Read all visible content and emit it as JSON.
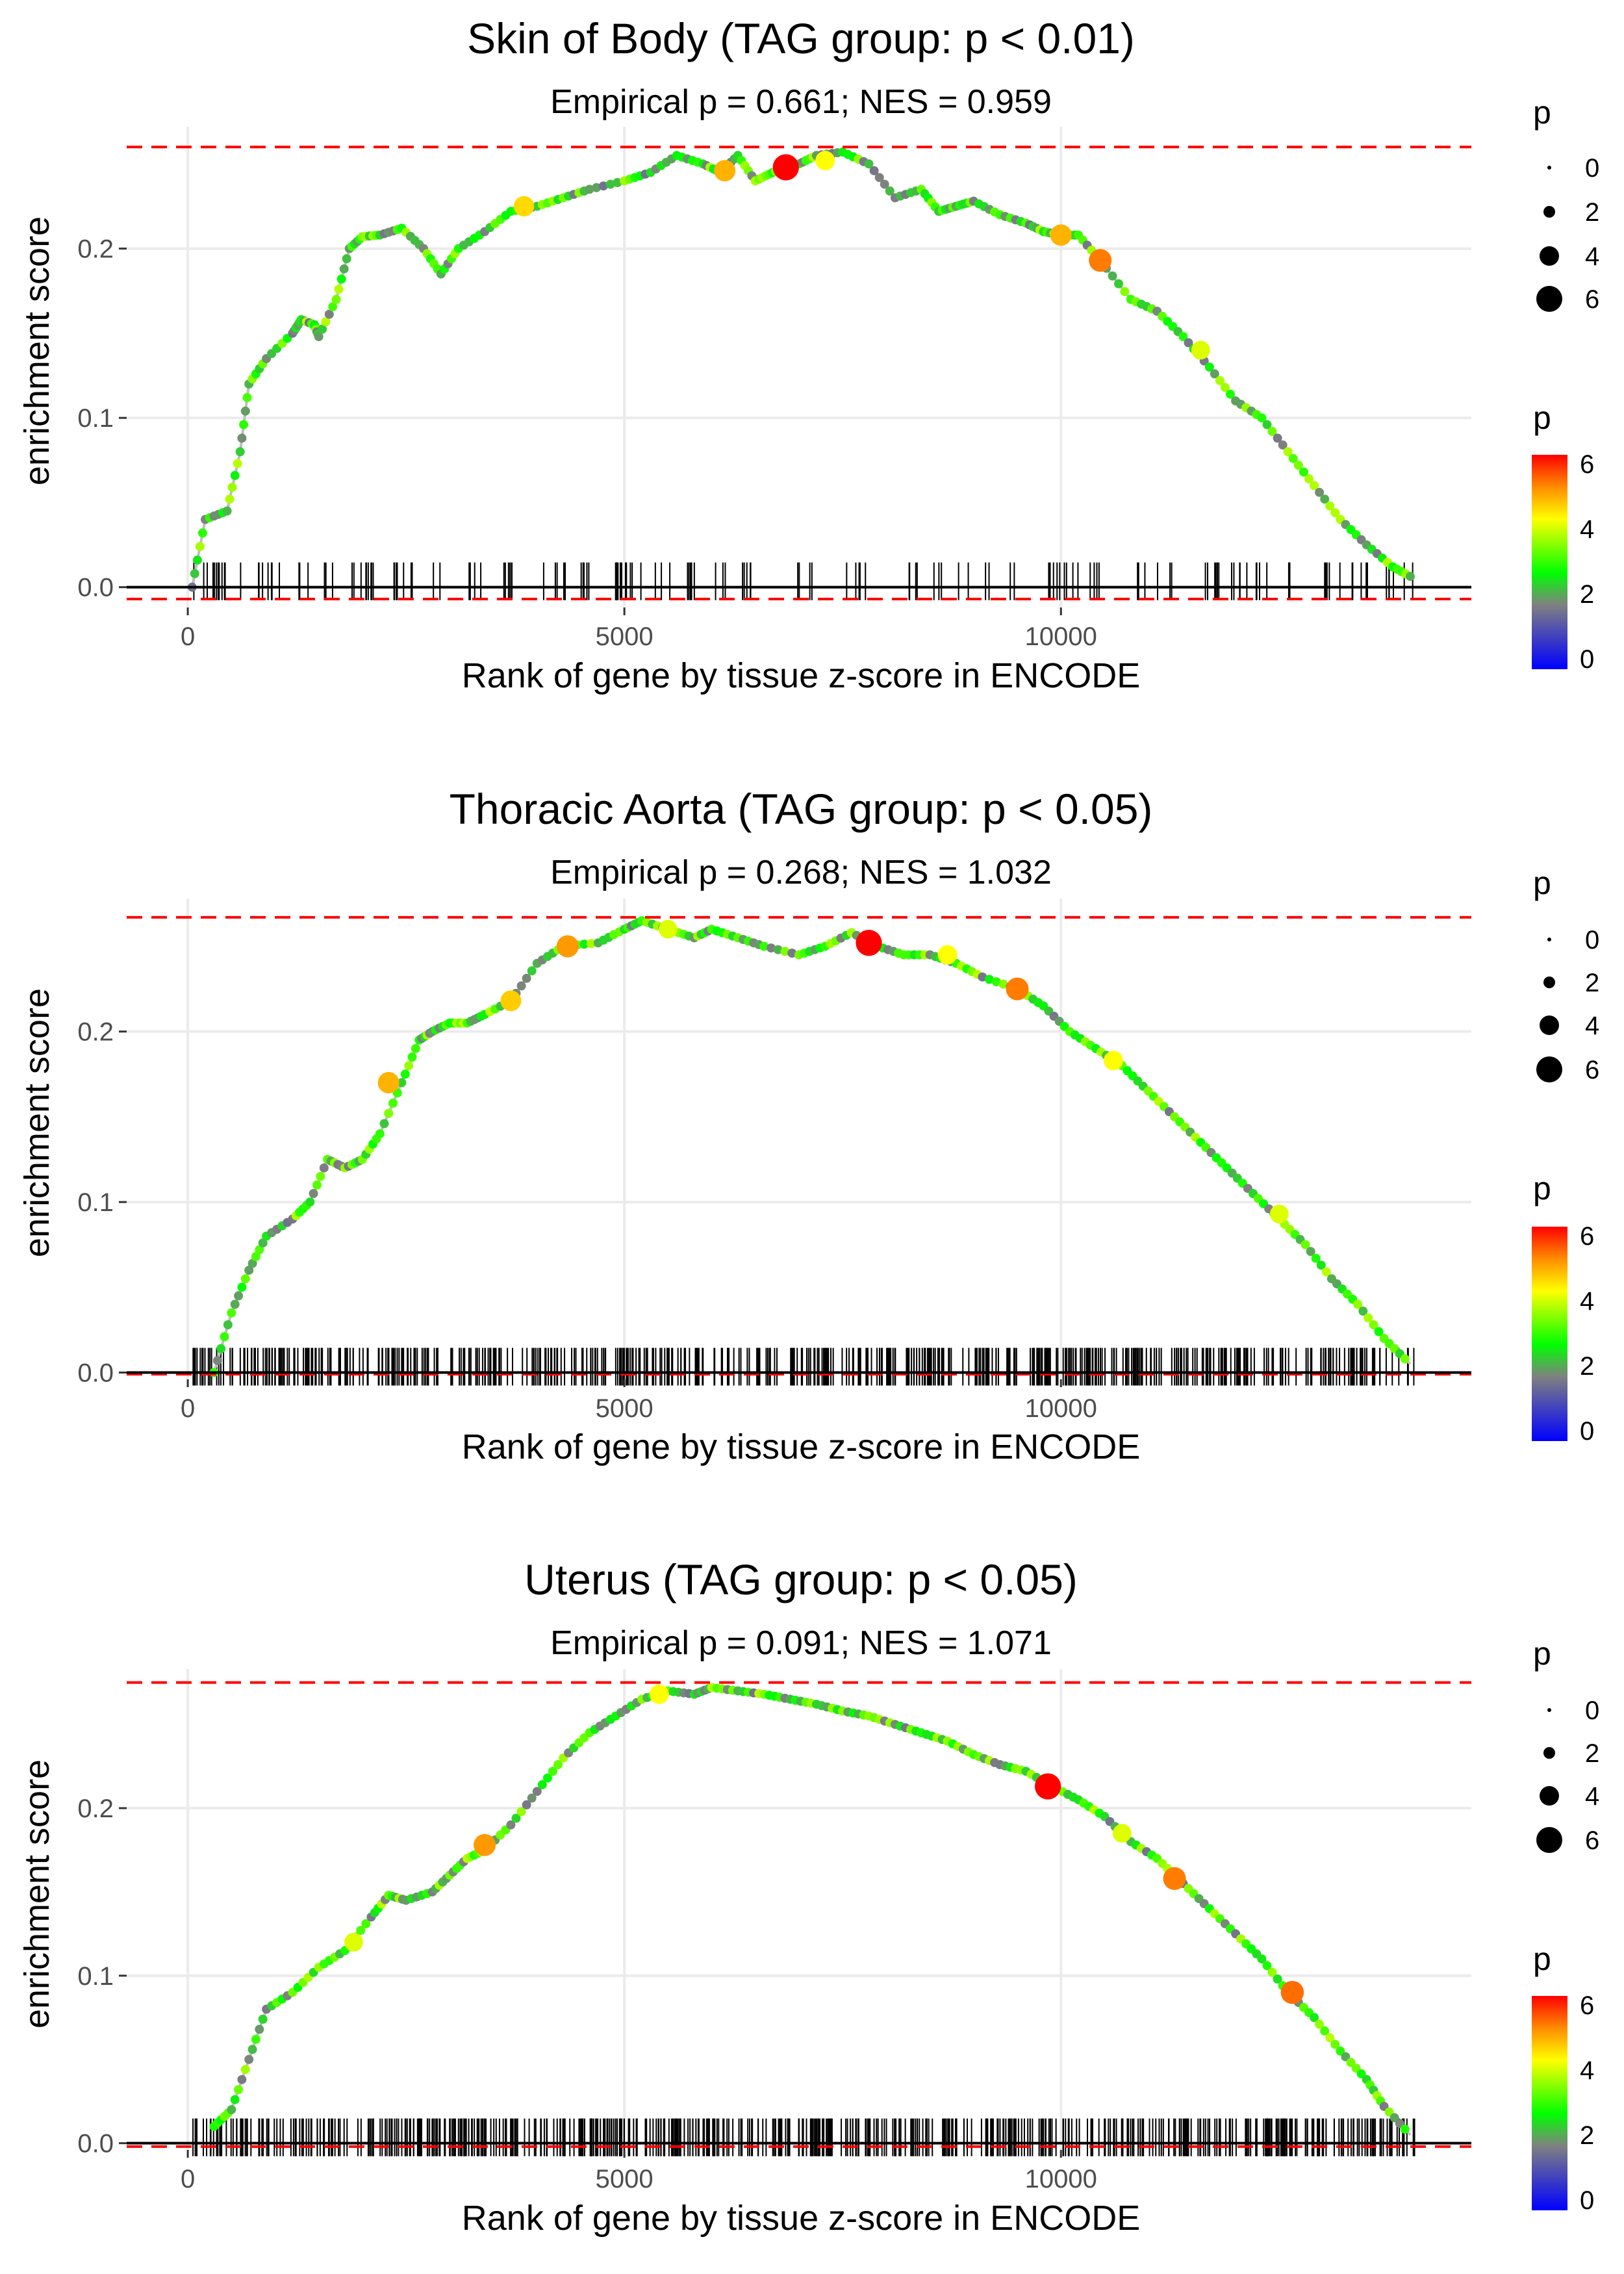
{
  "chart_data": [
    {
      "type": "line",
      "title": "Skin of Body (TAG group: p < 0.01)",
      "subtitle": "Empirical p = 0.661; NES = 0.959",
      "xlabel": "Rank of gene by tissue z-score in ENCODE",
      "ylabel": "enrichment score",
      "xlim": [
        -700,
        14700
      ],
      "ylim": [
        -0.012,
        0.272
      ],
      "xticks": [
        0,
        5000,
        10000
      ],
      "xtick_labels": [
        "0",
        "5000",
        "10000"
      ],
      "yticks": [
        0.0,
        0.1,
        0.2
      ],
      "ytick_labels": [
        "0.0",
        "0.1",
        "0.2"
      ],
      "ref_lines": {
        "max": 0.26,
        "min": -0.007,
        "zero": 0.0
      },
      "series": [
        {
          "name": "enrichment score",
          "x": [
            50,
            200,
            450,
            600,
            700,
            900,
            1200,
            1300,
            1450,
            1500,
            1700,
            1850,
            2000,
            2200,
            2450,
            2700,
            2900,
            3100,
            3400,
            3700,
            4000,
            4300,
            4600,
            5000,
            5300,
            5600,
            5900,
            6100,
            6300,
            6500,
            6700,
            6850,
            7000,
            7200,
            7500,
            7800,
            8100,
            8400,
            8600,
            8800,
            9000,
            9300,
            9600,
            9800,
            10000,
            10200,
            10450,
            10800,
            11100,
            11400,
            11700,
            12000,
            12300,
            12600,
            12900,
            13200,
            13500,
            13800,
            14050
          ],
          "y": [
            0.0,
            0.04,
            0.045,
            0.08,
            0.12,
            0.135,
            0.15,
            0.158,
            0.155,
            0.148,
            0.17,
            0.2,
            0.207,
            0.208,
            0.212,
            0.2,
            0.185,
            0.2,
            0.21,
            0.222,
            0.225,
            0.23,
            0.235,
            0.24,
            0.245,
            0.255,
            0.25,
            0.245,
            0.255,
            0.24,
            0.245,
            0.248,
            0.25,
            0.255,
            0.257,
            0.25,
            0.23,
            0.235,
            0.222,
            0.225,
            0.228,
            0.22,
            0.215,
            0.21,
            0.208,
            0.208,
            0.193,
            0.17,
            0.163,
            0.148,
            0.13,
            0.11,
            0.1,
            0.08,
            0.06,
            0.04,
            0.025,
            0.012,
            0.005
          ]
        }
      ],
      "highlight_points": [
        {
          "x": 3850,
          "y": 0.225,
          "p": 4.5
        },
        {
          "x": 6150,
          "y": 0.246,
          "p": 4.8
        },
        {
          "x": 6850,
          "y": 0.248,
          "p": 6.2
        },
        {
          "x": 7300,
          "y": 0.252,
          "p": 4.2
        },
        {
          "x": 10000,
          "y": 0.208,
          "p": 4.8
        },
        {
          "x": 10450,
          "y": 0.193,
          "p": 5.2
        },
        {
          "x": 11600,
          "y": 0.14,
          "p": 4.0
        }
      ],
      "rug_segments": [
        [
          50,
          700
        ],
        [
          800,
          1100
        ],
        [
          1250,
          1400
        ],
        [
          1550,
          1650
        ],
        [
          1800,
          1900
        ],
        [
          1650,
          2400
        ],
        [
          2450,
          2600
        ],
        [
          2700,
          3000
        ],
        [
          3150,
          3450
        ],
        [
          3600,
          3750
        ],
        [
          3800,
          3900
        ],
        [
          4050,
          4400
        ],
        [
          4500,
          4700
        ],
        [
          4850,
          5200
        ],
        [
          5350,
          5550
        ],
        [
          5700,
          6200
        ],
        [
          6350,
          6650
        ],
        [
          6900,
          7300
        ],
        [
          7500,
          7800
        ],
        [
          8250,
          8400
        ],
        [
          8500,
          8650
        ],
        [
          8800,
          8950
        ],
        [
          9100,
          9250
        ],
        [
          9400,
          9550
        ],
        [
          9800,
          10250
        ],
        [
          10300,
          10600
        ],
        [
          10700,
          11000
        ],
        [
          11100,
          11300
        ],
        [
          11600,
          11900
        ],
        [
          11950,
          12450
        ],
        [
          12550,
          12650
        ],
        [
          12950,
          13200
        ],
        [
          13300,
          13600
        ],
        [
          13700,
          13850
        ],
        [
          13900,
          14050
        ]
      ],
      "rug_n": 170,
      "legend": {
        "size_title": "p",
        "size_labels": [
          "0",
          "2",
          "4",
          "6"
        ],
        "color_title": "p",
        "color_labels": [
          "6",
          "4",
          "2",
          "0"
        ]
      }
    },
    {
      "type": "line",
      "title": "Thoracic Aorta (TAG group: p < 0.05)",
      "subtitle": "Empirical p = 0.268; NES = 1.032",
      "xlabel": "Rank of gene by tissue z-score in ENCODE",
      "ylabel": "enrichment score",
      "xlim": [
        -700,
        14700
      ],
      "ylim": [
        -0.004,
        0.278
      ],
      "xticks": [
        0,
        5000,
        10000
      ],
      "xtick_labels": [
        "0",
        "5000",
        "10000"
      ],
      "yticks": [
        0.0,
        0.1,
        0.2
      ],
      "ytick_labels": [
        "0.0",
        "0.1",
        "0.2"
      ],
      "ref_lines": {
        "max": 0.267,
        "min": -0.001,
        "zero": 0.0
      },
      "series": [
        {
          "name": "enrichment score",
          "x": [
            300,
            500,
            700,
            900,
            1200,
            1400,
            1600,
            1800,
            2000,
            2200,
            2450,
            2650,
            2800,
            3000,
            3200,
            3400,
            3700,
            4000,
            4300,
            4700,
            5000,
            5200,
            5500,
            5800,
            6000,
            6300,
            6600,
            7000,
            7300,
            7600,
            7900,
            8200,
            8500,
            8800,
            9100,
            9500,
            9800,
            10100,
            10400,
            10700,
            11000,
            11300,
            11600,
            11900,
            12200,
            12500,
            12800,
            13100,
            13400,
            13700,
            14000
          ],
          "y": [
            0.0,
            0.035,
            0.06,
            0.08,
            0.09,
            0.1,
            0.125,
            0.12,
            0.125,
            0.14,
            0.17,
            0.195,
            0.2,
            0.205,
            0.205,
            0.21,
            0.218,
            0.24,
            0.25,
            0.252,
            0.26,
            0.265,
            0.26,
            0.255,
            0.26,
            0.255,
            0.25,
            0.245,
            0.25,
            0.258,
            0.25,
            0.245,
            0.245,
            0.24,
            0.232,
            0.225,
            0.215,
            0.2,
            0.19,
            0.18,
            0.165,
            0.15,
            0.135,
            0.12,
            0.105,
            0.09,
            0.075,
            0.055,
            0.04,
            0.02,
            0.005
          ]
        }
      ],
      "highlight_points": [
        {
          "x": 2300,
          "y": 0.17,
          "p": 4.8
        },
        {
          "x": 3700,
          "y": 0.218,
          "p": 4.6
        },
        {
          "x": 4350,
          "y": 0.25,
          "p": 5.0
        },
        {
          "x": 5500,
          "y": 0.26,
          "p": 4.0
        },
        {
          "x": 7800,
          "y": 0.252,
          "p": 6.2
        },
        {
          "x": 8700,
          "y": 0.245,
          "p": 4.2
        },
        {
          "x": 9500,
          "y": 0.225,
          "p": 5.2
        },
        {
          "x": 10600,
          "y": 0.183,
          "p": 4.2
        },
        {
          "x": 12500,
          "y": 0.093,
          "p": 4.0
        }
      ],
      "rug_segments": [
        [
          50,
          14050
        ]
      ],
      "rug_n": 560,
      "legend": {
        "size_title": "p",
        "size_labels": [
          "0",
          "2",
          "4",
          "6"
        ],
        "color_title": "p",
        "color_labels": [
          "6",
          "4",
          "2",
          "0"
        ]
      }
    },
    {
      "type": "line",
      "title": "Uterus (TAG group: p < 0.05)",
      "subtitle": "Empirical p = 0.091; NES = 1.071",
      "xlabel": "Rank of gene by tissue z-score in ENCODE",
      "ylabel": "enrichment score",
      "xlim": [
        -700,
        14700
      ],
      "ylim": [
        -0.004,
        0.283
      ],
      "xticks": [
        0,
        5000,
        10000
      ],
      "xtick_labels": [
        "0",
        "5000",
        "10000"
      ],
      "yticks": [
        0.0,
        0.1,
        0.2
      ],
      "ytick_labels": [
        "0.0",
        "0.1",
        "0.2"
      ],
      "ref_lines": {
        "max": 0.275,
        "min": -0.002,
        "zero": 0.0
      },
      "series": [
        {
          "name": "enrichment score",
          "x": [
            300,
            500,
            700,
            900,
            1200,
            1500,
            1800,
            2100,
            2300,
            2500,
            2800,
            3000,
            3200,
            3400,
            3700,
            4000,
            4300,
            4600,
            4900,
            5200,
            5500,
            5800,
            6000,
            6300,
            6600,
            6900,
            7200,
            7500,
            7800,
            8100,
            8400,
            8700,
            9000,
            9300,
            9600,
            9900,
            10200,
            10500,
            10800,
            11100,
            11400,
            11700,
            12000,
            12300,
            12600,
            12900,
            13200,
            13500,
            13700,
            14000
          ],
          "y": [
            0.01,
            0.02,
            0.05,
            0.08,
            0.09,
            0.105,
            0.115,
            0.135,
            0.148,
            0.145,
            0.15,
            0.16,
            0.17,
            0.175,
            0.19,
            0.21,
            0.23,
            0.245,
            0.255,
            0.265,
            0.27,
            0.268,
            0.272,
            0.27,
            0.268,
            0.265,
            0.262,
            0.258,
            0.255,
            0.25,
            0.245,
            0.24,
            0.232,
            0.226,
            0.222,
            0.213,
            0.205,
            0.195,
            0.18,
            0.17,
            0.155,
            0.14,
            0.125,
            0.11,
            0.09,
            0.075,
            0.055,
            0.038,
            0.022,
            0.005
          ]
        }
      ],
      "highlight_points": [
        {
          "x": 3400,
          "y": 0.178,
          "p": 5.0
        },
        {
          "x": 1900,
          "y": 0.12,
          "p": 4.0
        },
        {
          "x": 5400,
          "y": 0.268,
          "p": 4.2
        },
        {
          "x": 9850,
          "y": 0.213,
          "p": 6.2
        },
        {
          "x": 11300,
          "y": 0.158,
          "p": 5.2
        },
        {
          "x": 10700,
          "y": 0.185,
          "p": 4.0
        },
        {
          "x": 12650,
          "y": 0.09,
          "p": 5.3
        }
      ],
      "rug_segments": [
        [
          50,
          14050
        ]
      ],
      "rug_n": 600,
      "legend": {
        "size_title": "p",
        "size_labels": [
          "0",
          "2",
          "4",
          "6"
        ],
        "color_title": "p",
        "color_labels": [
          "6",
          "4",
          "2",
          "0"
        ]
      }
    }
  ],
  "colors": {
    "max_line": "#ff0000",
    "curve": "#bebebe",
    "zero_line": "#000000",
    "grid": "#ebebeb"
  }
}
